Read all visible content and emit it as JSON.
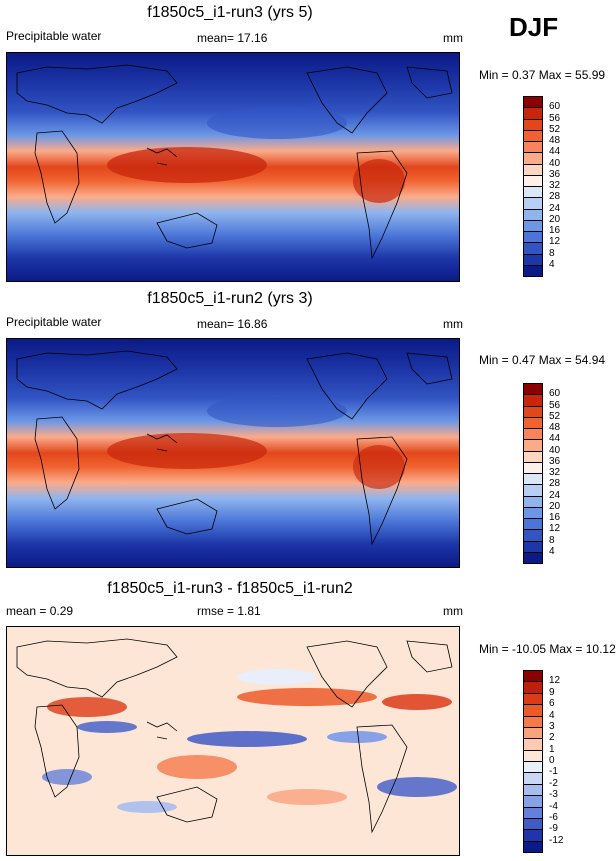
{
  "season": "DJF",
  "panels": [
    {
      "title": "f1850c5_i1-run3 (yrs 5)",
      "left_label": "Precipitable water",
      "center_label": "mean=  17.16",
      "units": "mm",
      "minmax": "Min =  0.37 Max =  55.99",
      "scheme": "field",
      "colorbar": {
        "labels": [
          "60",
          "56",
          "52",
          "48",
          "44",
          "40",
          "36",
          "32",
          "28",
          "24",
          "20",
          "16",
          "12",
          "8",
          "4"
        ],
        "colors": [
          "#8b0000",
          "#c8260c",
          "#e2471c",
          "#f0632f",
          "#f7845c",
          "#fbab8a",
          "#fdd6c2",
          "#fdf0e8",
          "#dbe6f6",
          "#b6cff2",
          "#8fb4ee",
          "#6b97e6",
          "#4b76d8",
          "#3255c4",
          "#1d36a8",
          "#0a1a86"
        ]
      }
    },
    {
      "title": "f1850c5_i1-run2 (yrs 3)",
      "left_label": "Precipitable water",
      "center_label": "mean=  16.86",
      "units": "mm",
      "minmax": "Min =  0.47 Max =  54.94",
      "scheme": "field",
      "colorbar": {
        "labels": [
          "60",
          "56",
          "52",
          "48",
          "44",
          "40",
          "36",
          "32",
          "28",
          "24",
          "20",
          "16",
          "12",
          "8",
          "4"
        ],
        "colors": [
          "#8b0000",
          "#c8260c",
          "#e2471c",
          "#f0632f",
          "#f7845c",
          "#fbab8a",
          "#fdd6c2",
          "#fdf0e8",
          "#dbe6f6",
          "#b6cff2",
          "#8fb4ee",
          "#6b97e6",
          "#4b76d8",
          "#3255c4",
          "#1d36a8",
          "#0a1a86"
        ]
      }
    },
    {
      "title": "f1850c5_i1-run3 - f1850c5_i1-run2",
      "left_label": "mean =   0.29",
      "center_label": "rmse =   1.81",
      "units": "mm",
      "minmax": "Min = -10.05 Max =  10.12",
      "scheme": "diff",
      "colorbar": {
        "labels": [
          "12",
          "9",
          "6",
          "4",
          "3",
          "2",
          "1",
          "0",
          "-1",
          "-2",
          "-3",
          "-4",
          "-6",
          "-9",
          "-12"
        ],
        "colors": [
          "#8b0000",
          "#c31e0a",
          "#dc3b17",
          "#ec5a2a",
          "#f5794b",
          "#f9a37e",
          "#fccbb2",
          "#fde6d6",
          "#e8eefa",
          "#c8d7f4",
          "#a6bdee",
          "#86a1e6",
          "#6480da",
          "#3f5bc8",
          "#1f35aa",
          "#0a1a86"
        ]
      }
    }
  ]
}
